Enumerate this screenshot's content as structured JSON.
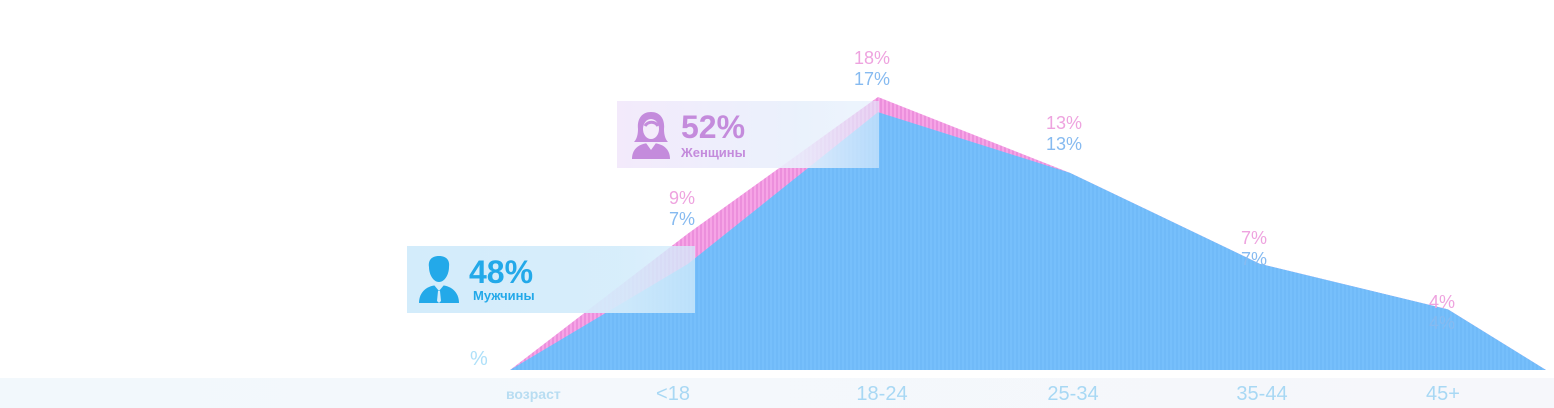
{
  "chart_data": {
    "type": "area",
    "categories": [
      "<18",
      "18-24",
      "25-34",
      "35-44",
      "45+"
    ],
    "xlabel": "возраст",
    "ylabel": "%",
    "series": [
      {
        "name": "Женщины",
        "values": [
          9,
          18,
          13,
          7,
          4
        ],
        "labels": [
          "9%",
          "18%",
          "13%",
          "7%",
          "4%"
        ],
        "color": "#f49ae3"
      },
      {
        "name": "Мужчины",
        "values": [
          7,
          17,
          13,
          7,
          4
        ],
        "labels": [
          "7%",
          "17%",
          "13%",
          "7%",
          "4%"
        ],
        "color": "#74befa"
      }
    ],
    "ylim": [
      0,
      18
    ]
  },
  "legend": {
    "women": {
      "percent": "52%",
      "label": "Женщины",
      "color": "#c48bdc",
      "icon": "woman-icon"
    },
    "men": {
      "percent": "48%",
      "label": "Мужчины",
      "color": "#23a9e9",
      "icon": "man-icon"
    }
  },
  "colors": {
    "women_label": "#eea3df",
    "men_label": "#86baf0",
    "tick": "#a8d8f4"
  }
}
